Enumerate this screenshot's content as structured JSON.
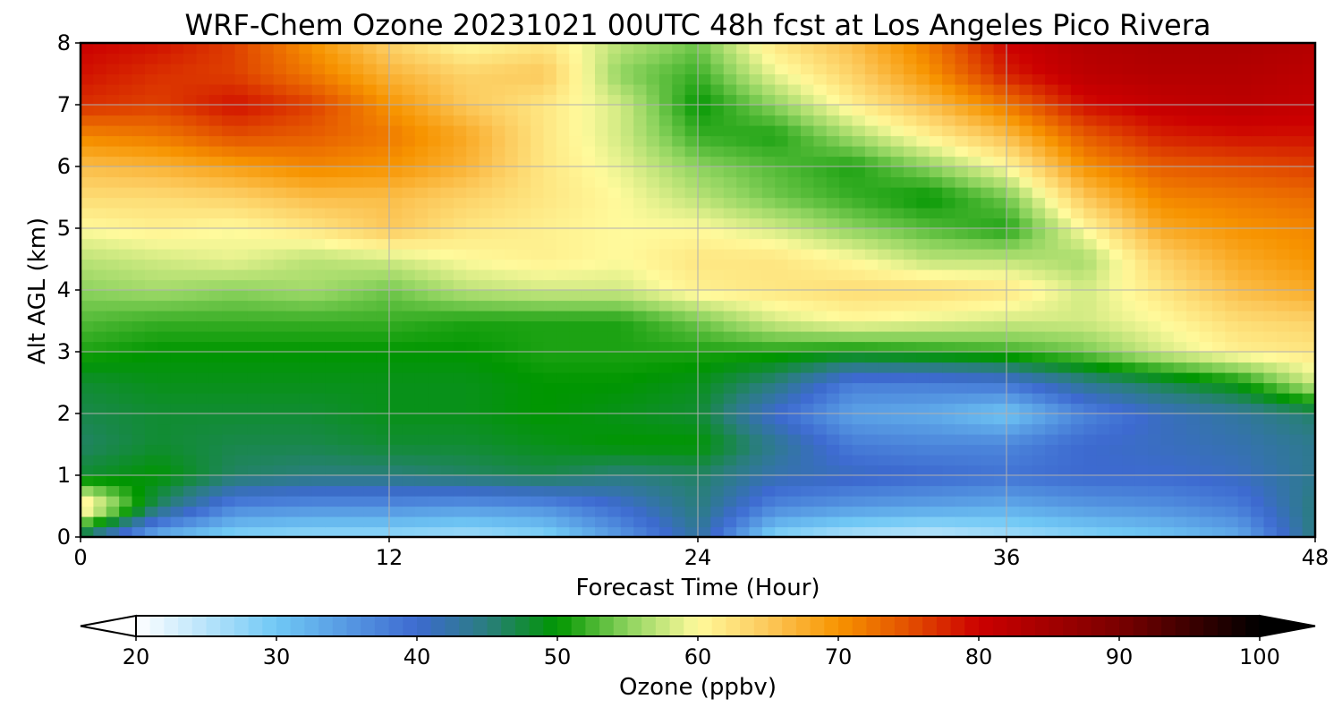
{
  "chart_data": {
    "type": "heatmap",
    "title": "WRF-Chem Ozone  20231021 00UTC 48h fcst at Los Angeles Pico Rivera",
    "xlabel": "Forecast Time (Hour)",
    "ylabel": "Alt AGL (km)",
    "xlim": [
      0,
      48
    ],
    "ylim": [
      0,
      8
    ],
    "x_ticks": [
      0,
      12,
      24,
      36,
      48
    ],
    "y_ticks": [
      0,
      1,
      2,
      3,
      4,
      5,
      6,
      7,
      8
    ],
    "grid": true,
    "colorbar": {
      "label": "Ozone  (ppbv)",
      "min": 20,
      "max": 100,
      "ticks": [
        20,
        30,
        40,
        50,
        60,
        70,
        80,
        90,
        100
      ],
      "extend": "both",
      "placement": "bottom",
      "stops": [
        {
          "value": 20,
          "color": "#ffffff"
        },
        {
          "value": 30,
          "color": "#70c8f5"
        },
        {
          "value": 40,
          "color": "#3d6ad0"
        },
        {
          "value": 45,
          "color": "#2a7e7e"
        },
        {
          "value": 50,
          "color": "#009600"
        },
        {
          "value": 55,
          "color": "#8dd35e"
        },
        {
          "value": 60,
          "color": "#fffa9c"
        },
        {
          "value": 65,
          "color": "#fcc85a"
        },
        {
          "value": 70,
          "color": "#f79400"
        },
        {
          "value": 75,
          "color": "#e35000"
        },
        {
          "value": 80,
          "color": "#cc0000"
        },
        {
          "value": 90,
          "color": "#7a0000"
        },
        {
          "value": 100,
          "color": "#000000"
        }
      ]
    },
    "x": [
      0,
      3,
      6,
      9,
      12,
      15,
      18,
      21,
      24,
      27,
      30,
      33,
      36,
      39,
      42,
      45,
      48
    ],
    "y": [
      0,
      0.5,
      1,
      1.5,
      2,
      2.5,
      3,
      3.5,
      4,
      4.5,
      5,
      5.5,
      6,
      6.5,
      7,
      7.5,
      8
    ],
    "values": [
      [
        45,
        32,
        28,
        27,
        27,
        26,
        28,
        35,
        43,
        28,
        25,
        24,
        26,
        28,
        30,
        33,
        45
      ],
      [
        64,
        46,
        37,
        36,
        36,
        35,
        36,
        40,
        45,
        37,
        35,
        34,
        33,
        35,
        36,
        38,
        45
      ],
      [
        48,
        50,
        46,
        45,
        45,
        46,
        47,
        45,
        46,
        42,
        41,
        40,
        39,
        40,
        40,
        41,
        44
      ],
      [
        46,
        48,
        47,
        47,
        48,
        48,
        49,
        50,
        50,
        44,
        38,
        37,
        37,
        40,
        41,
        42,
        44
      ],
      [
        47,
        48,
        48,
        48,
        49,
        49,
        50,
        49,
        48,
        40,
        34,
        33,
        30,
        37,
        41,
        43,
        46
      ],
      [
        48,
        49,
        49,
        49,
        49,
        49,
        50,
        50,
        49,
        45,
        38,
        38,
        39,
        44,
        47,
        50,
        58
      ],
      [
        51,
        50,
        50,
        50,
        50,
        50,
        51,
        51,
        51,
        51,
        50,
        51,
        52,
        54,
        58,
        61,
        62
      ],
      [
        53,
        52,
        52,
        52,
        52,
        51,
        51,
        51,
        54,
        58,
        60,
        59,
        58,
        58,
        60,
        63,
        64
      ],
      [
        55,
        56,
        55,
        56,
        54,
        57,
        58,
        58,
        61,
        62,
        63,
        63,
        62,
        58,
        62,
        66,
        68
      ],
      [
        57,
        58,
        59,
        57,
        58,
        60,
        61,
        60,
        62,
        62,
        60,
        57,
        57,
        56,
        64,
        68,
        70
      ],
      [
        60,
        61,
        60,
        62,
        65,
        62,
        61,
        60,
        60,
        58,
        55,
        53,
        51,
        60,
        68,
        70,
        71
      ],
      [
        63,
        63,
        64,
        66,
        66,
        64,
        62,
        60,
        57,
        54,
        52,
        50,
        54,
        65,
        71,
        72,
        73
      ],
      [
        66,
        67,
        69,
        71,
        70,
        67,
        62,
        59,
        55,
        53,
        51,
        55,
        60,
        70,
        74,
        75,
        76
      ],
      [
        71,
        72,
        75,
        74,
        72,
        68,
        62,
        58,
        52,
        51,
        56,
        61,
        66,
        74,
        78,
        79,
        79
      ],
      [
        77,
        76,
        79,
        76,
        70,
        65,
        62,
        58,
        50,
        55,
        61,
        66,
        72,
        79,
        81,
        82,
        81
      ],
      [
        79,
        77,
        76,
        72,
        67,
        64,
        65,
        55,
        52,
        59,
        64,
        70,
        78,
        82,
        83,
        83,
        82
      ],
      [
        80,
        79,
        76,
        70,
        64,
        60,
        62,
        57,
        54,
        62,
        66,
        72,
        80,
        83,
        84,
        84,
        83
      ]
    ]
  }
}
